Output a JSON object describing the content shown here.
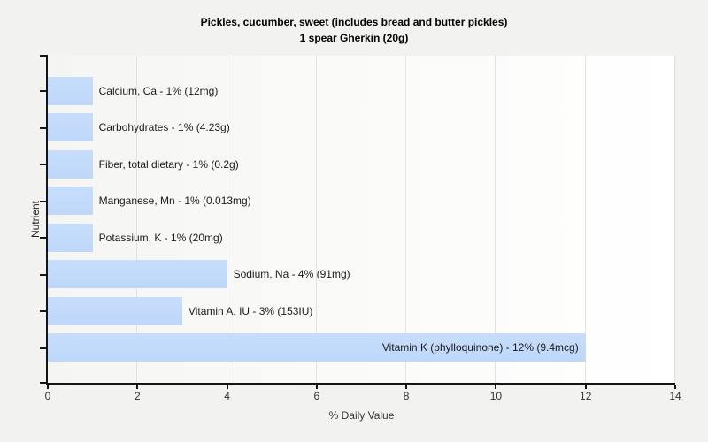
{
  "window": {
    "background": "#f2f2f0"
  },
  "chart_data": {
    "type": "bar",
    "orientation": "horizontal",
    "title": "Pickles, cucumber, sweet (includes bread and butter pickles)",
    "subtitle": "1 spear Gherkin (20g)",
    "xlabel": "% Daily Value",
    "ylabel": "Nutrient",
    "xlim": [
      0,
      14
    ],
    "x_ticks": [
      0,
      2,
      4,
      6,
      8,
      10,
      12,
      14
    ],
    "grid": "vertical-major",
    "legend": "none",
    "bar_color": "#c1d9fa",
    "gridline_color": "#e2e2e0",
    "axis_color": "#151515",
    "categories": [
      "Calcium, Ca",
      "Carbohydrates",
      "Fiber, total dietary",
      "Manganese, Mn",
      "Potassium, K",
      "Sodium, Na",
      "Vitamin A, IU",
      "Vitamin K (phylloquinone)"
    ],
    "values": [
      1,
      1,
      1,
      1,
      1,
      4,
      3,
      12
    ],
    "bars": [
      {
        "label": "Calcium, Ca - 1% (12mg)",
        "percent_dv": 1,
        "amount": "12mg"
      },
      {
        "label": "Carbohydrates - 1% (4.23g)",
        "percent_dv": 1,
        "amount": "4.23g"
      },
      {
        "label": "Fiber, total dietary - 1% (0.2g)",
        "percent_dv": 1,
        "amount": "0.2g"
      },
      {
        "label": "Manganese, Mn - 1% (0.013mg)",
        "percent_dv": 1,
        "amount": "0.013mg"
      },
      {
        "label": "Potassium, K - 1% (20mg)",
        "percent_dv": 1,
        "amount": "20mg"
      },
      {
        "label": "Sodium, Na - 4% (91mg)",
        "percent_dv": 4,
        "amount": "91mg"
      },
      {
        "label": "Vitamin A, IU - 3% (153IU)",
        "percent_dv": 3,
        "amount": "153IU"
      },
      {
        "label": "Vitamin K (phylloquinone) - 12% (9.4mcg)",
        "percent_dv": 12,
        "amount": "9.4mcg"
      }
    ]
  }
}
